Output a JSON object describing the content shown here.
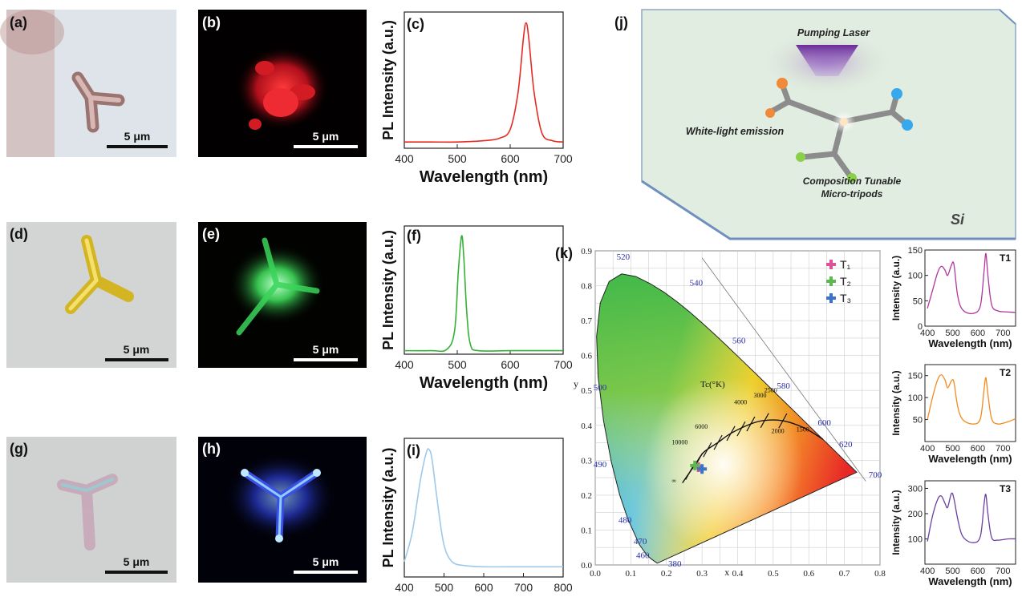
{
  "panels": {
    "a": "(a)",
    "b": "(b)",
    "c": "(c)",
    "d": "(d)",
    "e": "(e)",
    "f": "(f)",
    "g": "(g)",
    "h": "(h)",
    "i": "(i)",
    "j": "(j)",
    "k": "(k)"
  },
  "scalebar": "5 μm",
  "colors": {
    "red_emission": "#e52a24",
    "green_emission": "#33b233",
    "blue_emission": "#9ec9ea",
    "t1": "#b0379f",
    "t2": "#f28a1e",
    "t3": "#6a3fa0"
  },
  "schematic": {
    "pumping": "Pumping Laser",
    "white": "White-light emission",
    "comp1": "Composition Tunable",
    "comp2": "Micro-tripods",
    "si": "Si"
  },
  "cie": {
    "legend": [
      "T₁",
      "T₂",
      "T₃"
    ],
    "tc_label": "Tc(°K)",
    "wavelength_labels": [
      "380",
      "460",
      "470",
      "480",
      "490",
      "500",
      "520",
      "540",
      "560",
      "580",
      "600",
      "620",
      "700"
    ],
    "temp_labels": [
      "∞",
      "10000",
      "6000",
      "4000",
      "3000",
      "2500",
      "2000",
      "1500"
    ]
  },
  "chart_data": [
    {
      "type": "line",
      "panel": "c",
      "xlabel": "Wavelength (nm)",
      "ylabel": "PL Intensity (a.u.)",
      "xlim": [
        400,
        700
      ],
      "xticks": [
        400,
        500,
        600,
        700
      ],
      "series": [
        {
          "color": "#e52a24",
          "peak_x": 630,
          "fwhm": 26,
          "baseline": 0.05,
          "x": [
            400,
            450,
            500,
            550,
            580,
            600,
            615,
            625,
            630,
            635,
            645,
            660,
            680,
            700
          ],
          "y": [
            0.05,
            0.05,
            0.05,
            0.06,
            0.08,
            0.15,
            0.45,
            0.88,
            1.0,
            0.88,
            0.45,
            0.12,
            0.06,
            0.05
          ]
        }
      ]
    },
    {
      "type": "line",
      "panel": "f",
      "xlabel": "Wavelength (nm)",
      "ylabel": "PL Intensity (a.u.)",
      "xlim": [
        400,
        700
      ],
      "xticks": [
        400,
        500,
        600,
        700
      ],
      "series": [
        {
          "color": "#33b233",
          "x": [
            400,
            450,
            480,
            495,
            502,
            508,
            512,
            518,
            525,
            540,
            600,
            700
          ],
          "y": [
            0.03,
            0.03,
            0.04,
            0.2,
            0.7,
            1.0,
            0.85,
            0.35,
            0.08,
            0.03,
            0.03,
            0.03
          ]
        }
      ]
    },
    {
      "type": "line",
      "panel": "i",
      "xlabel": "Wavelength (nm)",
      "ylabel": "PL Intensity (a.u.)",
      "xlim": [
        400,
        800
      ],
      "xticks": [
        400,
        500,
        600,
        700,
        800
      ],
      "series": [
        {
          "color": "#9ec9ea",
          "x": [
            400,
            420,
            440,
            455,
            462,
            470,
            485,
            500,
            520,
            550,
            600,
            700,
            800
          ],
          "y": [
            0.12,
            0.35,
            0.75,
            0.97,
            1.0,
            0.92,
            0.55,
            0.25,
            0.12,
            0.09,
            0.08,
            0.08,
            0.08
          ]
        }
      ]
    },
    {
      "type": "scatter",
      "panel": "k",
      "xlabel": "x",
      "ylabel": "y",
      "xlim": [
        0.0,
        0.8
      ],
      "ylim": [
        0.0,
        0.9
      ],
      "xticks": [
        0.0,
        0.1,
        0.2,
        0.3,
        0.4,
        0.5,
        0.6,
        0.7,
        0.8
      ],
      "yticks": [
        0.0,
        0.1,
        0.2,
        0.3,
        0.4,
        0.5,
        0.6,
        0.7,
        0.8,
        0.9
      ],
      "series": [
        {
          "name": "T₁",
          "color": "#e0509a",
          "x": [
            0.29
          ],
          "y": [
            0.28
          ]
        },
        {
          "name": "T₂",
          "color": "#5cb84f",
          "x": [
            0.28
          ],
          "y": [
            0.285
          ]
        },
        {
          "name": "T₃",
          "color": "#3b73c6",
          "x": [
            0.3
          ],
          "y": [
            0.275
          ]
        }
      ]
    },
    {
      "type": "line",
      "panel": "T1",
      "tag": "T1",
      "xlabel": "Wavelength (nm)",
      "ylabel": "Intensity (a.u.)",
      "xlim": [
        390,
        750
      ],
      "ylim": [
        0,
        150
      ],
      "xticks": [
        400,
        500,
        600,
        700
      ],
      "yticks": [
        0,
        50,
        100,
        150
      ],
      "series": [
        {
          "color": "#b0379f",
          "x": [
            400,
            420,
            440,
            455,
            470,
            480,
            495,
            505,
            520,
            540,
            580,
            610,
            625,
            632,
            640,
            655,
            680,
            720,
            750
          ],
          "y": [
            35,
            70,
            105,
            118,
            110,
            100,
            120,
            122,
            60,
            32,
            25,
            40,
            110,
            143,
            100,
            42,
            30,
            28,
            27
          ]
        }
      ]
    },
    {
      "type": "line",
      "panel": "T2",
      "tag": "T2",
      "xlabel": "Wavelength (nm)",
      "ylabel": "Intensity (a.u.)",
      "xlim": [
        390,
        750
      ],
      "ylim": [
        0,
        175
      ],
      "xticks": [
        400,
        500,
        600,
        700
      ],
      "yticks": [
        50,
        100,
        150
      ],
      "series": [
        {
          "color": "#f28a1e",
          "x": [
            400,
            420,
            440,
            455,
            470,
            480,
            495,
            505,
            520,
            540,
            580,
            610,
            625,
            632,
            640,
            655,
            680,
            720,
            750
          ],
          "y": [
            50,
            100,
            140,
            152,
            140,
            122,
            138,
            135,
            80,
            50,
            40,
            52,
            120,
            145,
            108,
            52,
            40,
            45,
            52
          ]
        }
      ]
    },
    {
      "type": "line",
      "panel": "T3",
      "tag": "T3",
      "xlabel": "Wavelength (nm)",
      "ylabel": "Intensity (a.u.)",
      "xlim": [
        390,
        750
      ],
      "ylim": [
        0,
        330
      ],
      "xticks": [
        400,
        500,
        600,
        700
      ],
      "yticks": [
        100,
        200,
        300
      ],
      "series": [
        {
          "color": "#6a3fa0",
          "x": [
            400,
            420,
            440,
            455,
            470,
            480,
            495,
            505,
            520,
            540,
            580,
            610,
            625,
            632,
            640,
            655,
            680,
            720,
            750
          ],
          "y": [
            90,
            190,
            255,
            270,
            240,
            225,
            280,
            260,
            180,
            110,
            85,
            110,
            240,
            275,
            200,
            105,
            95,
            100,
            100
          ]
        }
      ]
    }
  ]
}
